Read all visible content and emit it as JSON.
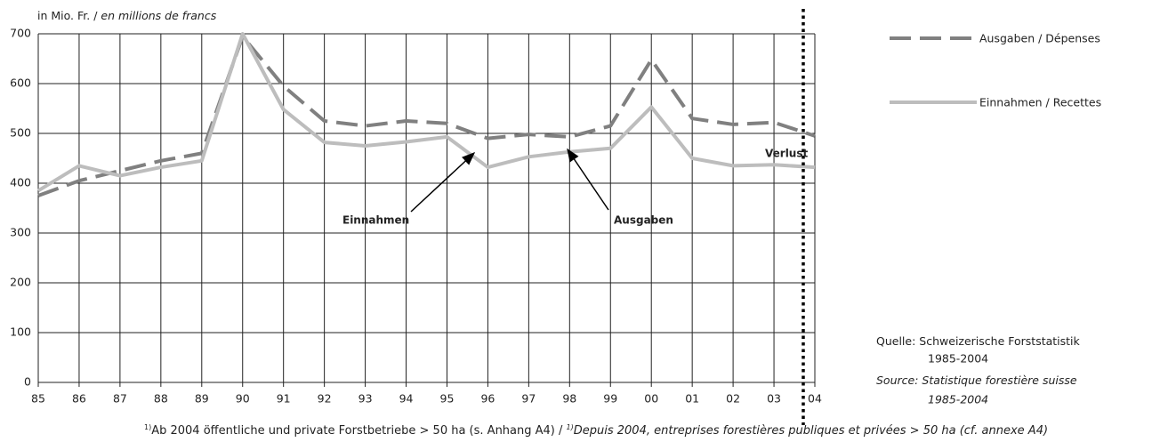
{
  "chart_data": {
    "type": "line",
    "y_label": {
      "de": "in Mio. Fr. /",
      "fr": "en millions de francs"
    },
    "categories": [
      "85",
      "86",
      "87",
      "88",
      "89",
      "90",
      "91",
      "92",
      "93",
      "94",
      "95",
      "96",
      "97",
      "98",
      "99",
      "00",
      "01",
      "02",
      "03",
      "04"
    ],
    "series": [
      {
        "name": "Ausgaben / Dépenses",
        "color": "#808080",
        "dashed": true,
        "values": [
          375,
          405,
          425,
          445,
          460,
          695,
          595,
          525,
          515,
          525,
          520,
          490,
          498,
          493,
          515,
          648,
          530,
          518,
          522,
          495
        ]
      },
      {
        "name": "Einnahmen / Recettes",
        "color": "#bdbdbd",
        "dashed": false,
        "values": [
          385,
          435,
          415,
          432,
          445,
          700,
          548,
          482,
          475,
          483,
          493,
          432,
          453,
          463,
          470,
          553,
          450,
          435,
          437,
          432
        ]
      }
    ],
    "ylim": [
      0,
      700
    ],
    "yticks": [
      0,
      100,
      200,
      300,
      400,
      500,
      600,
      700
    ],
    "grid": true,
    "annotations": [
      "Verlust",
      "Einnahmen",
      "Ausgaben"
    ],
    "source": {
      "label_de": "Quelle:",
      "de": [
        "Schweizerische Forststatistik",
        "1985-2004"
      ],
      "label_fr": "Source:",
      "fr": [
        "Statistique forestière suisse",
        "1985-2004"
      ]
    },
    "footnote": {
      "marker": "1)",
      "de": "Ab 2004 öffentliche und private Forstbetriebe > 50 ha (s. Anhang A4) /",
      "marker_fr": "1)",
      "fr": "Depuis 2004, entreprises forestières publiques et privées > 50 ha (cf. annexe A4)"
    }
  }
}
